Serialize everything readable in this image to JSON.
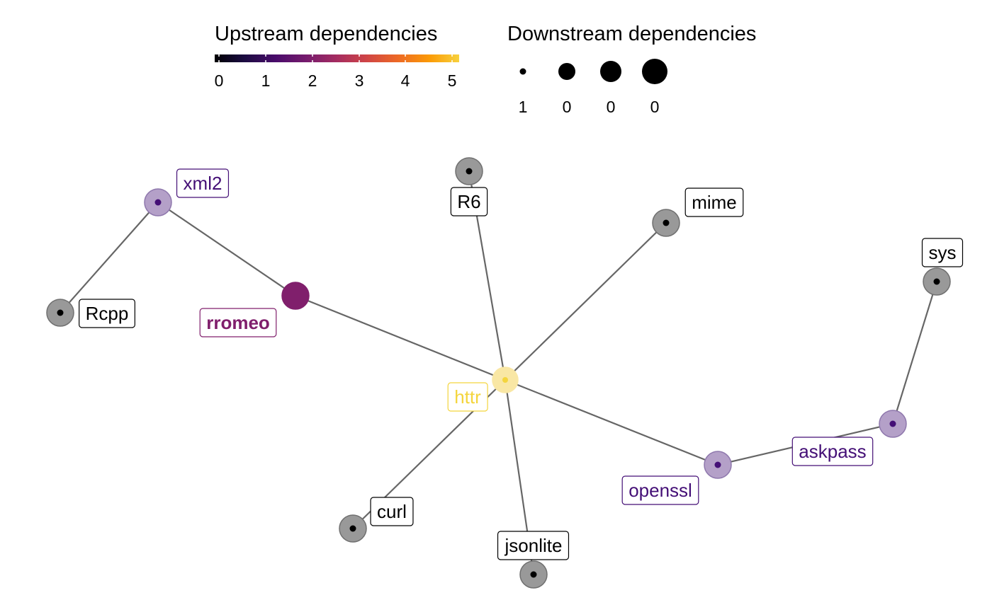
{
  "legend": {
    "upstream_title": "Upstream dependencies",
    "upstream_ticks": [
      "0",
      "1",
      "2",
      "3",
      "4",
      "5"
    ],
    "downstream_title": "Downstream dependencies",
    "downstream_ticks": [
      "1",
      "0",
      "0",
      "0"
    ]
  },
  "colors": {
    "edge": "#666666",
    "gray_node": "#999999",
    "purple": "#440f76",
    "purple_fill": "#b4a0c8",
    "magenta": "#801f6c",
    "yellow": "#f4d53d",
    "yellow_fill": "#f9e7a4"
  },
  "nodes": [
    {
      "id": "httr",
      "label": "httr",
      "upstream": 5,
      "style": "yellow"
    },
    {
      "id": "rromeo",
      "label": "rromeo",
      "upstream": 2,
      "style": "magenta"
    },
    {
      "id": "xml2",
      "label": "xml2",
      "upstream": 1,
      "style": "purple"
    },
    {
      "id": "Rcpp",
      "label": "Rcpp",
      "upstream": 0,
      "style": "gray"
    },
    {
      "id": "R6",
      "label": "R6",
      "upstream": 0,
      "style": "gray"
    },
    {
      "id": "mime",
      "label": "mime",
      "upstream": 0,
      "style": "gray"
    },
    {
      "id": "sys",
      "label": "sys",
      "upstream": 0,
      "style": "gray"
    },
    {
      "id": "askpass",
      "label": "askpass",
      "upstream": 1,
      "style": "purple"
    },
    {
      "id": "openssl",
      "label": "openssl",
      "upstream": 1,
      "style": "purple"
    },
    {
      "id": "curl",
      "label": "curl",
      "upstream": 0,
      "style": "gray"
    },
    {
      "id": "jsonlite",
      "label": "jsonlite",
      "upstream": 0,
      "style": "gray"
    }
  ],
  "edges": [
    {
      "from": "rromeo",
      "to": "xml2"
    },
    {
      "from": "xml2",
      "to": "Rcpp"
    },
    {
      "from": "rromeo",
      "to": "httr"
    },
    {
      "from": "httr",
      "to": "R6"
    },
    {
      "from": "httr",
      "to": "mime"
    },
    {
      "from": "httr",
      "to": "curl"
    },
    {
      "from": "httr",
      "to": "jsonlite"
    },
    {
      "from": "httr",
      "to": "openssl"
    },
    {
      "from": "openssl",
      "to": "askpass"
    },
    {
      "from": "askpass",
      "to": "sys"
    }
  ]
}
